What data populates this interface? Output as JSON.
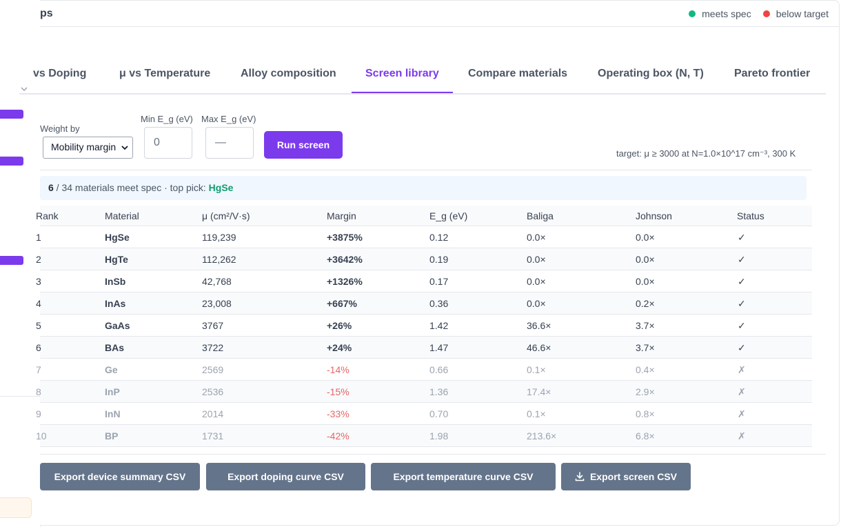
{
  "app": {
    "title_fragment": "ps"
  },
  "legend": [
    {
      "label": "meets spec",
      "color": "#10b981"
    },
    {
      "label": "below target",
      "color": "#ef4444"
    }
  ],
  "tabs": [
    {
      "label": "vs Doping",
      "active": false
    },
    {
      "label": "μ vs Temperature",
      "active": false
    },
    {
      "label": "Alloy composition",
      "active": false
    },
    {
      "label": "Screen library",
      "active": true
    },
    {
      "label": "Compare materials",
      "active": false
    },
    {
      "label": "Operating box (N, T)",
      "active": false
    },
    {
      "label": "Pareto frontier",
      "active": false
    }
  ],
  "controls": {
    "weight_label": "Weight by",
    "weight_value": "Mobility margin",
    "min_eg_label": "Min E_g (eV)",
    "min_eg_value": "0",
    "max_eg_label": "Max E_g (eV)",
    "max_eg_placeholder": "—",
    "run_label": "Run screen",
    "target_note": "target: μ ≥ 3000 at N=1.0×10^17 cm⁻³, 300 K"
  },
  "summary": {
    "count": "6",
    "text": " / 34 materials meet spec · top pick: ",
    "top_pick": "HgSe"
  },
  "table": {
    "headers": [
      "Rank",
      "Material",
      "μ (cm²/V·s)",
      "Margin",
      "E_g (eV)",
      "Baliga",
      "Johnson",
      "Status"
    ],
    "rows": [
      {
        "rank": "1",
        "material": "HgSe",
        "mu": "119,239",
        "margin": "+3875%",
        "eg": "0.12",
        "baliga": "0.0×",
        "johnson": "0.0×",
        "status": "✓",
        "pass": true
      },
      {
        "rank": "2",
        "material": "HgTe",
        "mu": "112,262",
        "margin": "+3642%",
        "eg": "0.19",
        "baliga": "0.0×",
        "johnson": "0.0×",
        "status": "✓",
        "pass": true
      },
      {
        "rank": "3",
        "material": "InSb",
        "mu": "42,768",
        "margin": "+1326%",
        "eg": "0.17",
        "baliga": "0.0×",
        "johnson": "0.0×",
        "status": "✓",
        "pass": true
      },
      {
        "rank": "4",
        "material": "InAs",
        "mu": "23,008",
        "margin": "+667%",
        "eg": "0.36",
        "baliga": "0.0×",
        "johnson": "0.2×",
        "status": "✓",
        "pass": true
      },
      {
        "rank": "5",
        "material": "GaAs",
        "mu": "3767",
        "margin": "+26%",
        "eg": "1.42",
        "baliga": "36.6×",
        "johnson": "3.7×",
        "status": "✓",
        "pass": true
      },
      {
        "rank": "6",
        "material": "BAs",
        "mu": "3722",
        "margin": "+24%",
        "eg": "1.47",
        "baliga": "46.6×",
        "johnson": "3.7×",
        "status": "✓",
        "pass": true
      },
      {
        "rank": "7",
        "material": "Ge",
        "mu": "2569",
        "margin": "-14%",
        "eg": "0.66",
        "baliga": "0.1×",
        "johnson": "0.4×",
        "status": "✗",
        "pass": false
      },
      {
        "rank": "8",
        "material": "InP",
        "mu": "2536",
        "margin": "-15%",
        "eg": "1.36",
        "baliga": "17.4×",
        "johnson": "2.9×",
        "status": "✗",
        "pass": false
      },
      {
        "rank": "9",
        "material": "InN",
        "mu": "2014",
        "margin": "-33%",
        "eg": "0.70",
        "baliga": "0.1×",
        "johnson": "0.8×",
        "status": "✗",
        "pass": false
      },
      {
        "rank": "10",
        "material": "BP",
        "mu": "1731",
        "margin": "-42%",
        "eg": "1.98",
        "baliga": "213.6×",
        "johnson": "6.8×",
        "status": "✗",
        "pass": false
      }
    ]
  },
  "exports": [
    {
      "label": "Export device summary CSV",
      "icon": ""
    },
    {
      "label": "Export doping curve CSV",
      "icon": ""
    },
    {
      "label": "Export temperature curve CSV",
      "icon": ""
    },
    {
      "label": "Export screen CSV",
      "icon": "download-icon"
    }
  ]
}
